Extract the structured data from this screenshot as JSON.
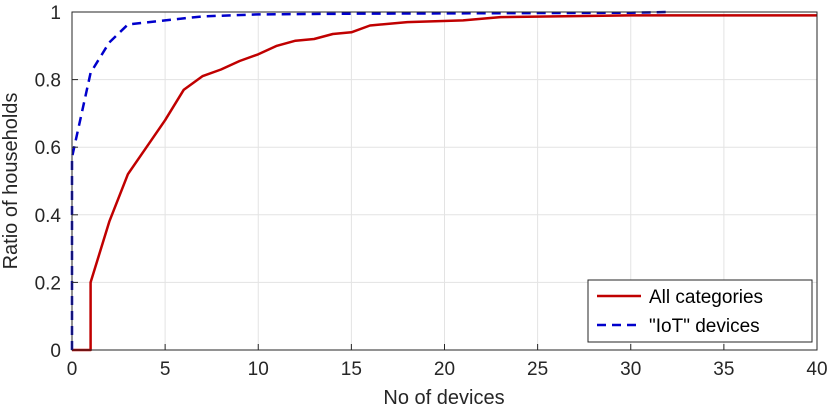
{
  "chart_data": {
    "type": "line",
    "xlabel": "No of devices",
    "ylabel": "Ratio of households",
    "xlim": [
      0,
      40
    ],
    "ylim": [
      0,
      1
    ],
    "xticks": [
      "0",
      "5",
      "10",
      "15",
      "20",
      "25",
      "30",
      "35",
      "40"
    ],
    "yticks": [
      "0",
      "0.2",
      "0.4",
      "0.6",
      "0.8",
      "1"
    ],
    "grid": true,
    "legend_position": "bottom-right",
    "series": [
      {
        "name": "All categories",
        "color": "#c00000",
        "style": "solid",
        "x": [
          0,
          1,
          1,
          2,
          3,
          4,
          5,
          6,
          7,
          8,
          9,
          10,
          11,
          12,
          13,
          14,
          15,
          16,
          18,
          21,
          23,
          30,
          40
        ],
        "y": [
          0,
          0,
          0.2,
          0.38,
          0.52,
          0.6,
          0.68,
          0.77,
          0.81,
          0.83,
          0.855,
          0.875,
          0.9,
          0.915,
          0.92,
          0.935,
          0.94,
          0.96,
          0.97,
          0.975,
          0.985,
          0.99,
          0.99
        ]
      },
      {
        "name": "\"IoT\" devices",
        "color": "#0000cc",
        "style": "dashed",
        "x": [
          0,
          0,
          1,
          2,
          3,
          5,
          7,
          10,
          15,
          20,
          30,
          32
        ],
        "y": [
          0,
          0.57,
          0.82,
          0.91,
          0.963,
          0.975,
          0.987,
          0.993,
          0.995,
          0.996,
          0.998,
          1.0
        ]
      }
    ]
  }
}
